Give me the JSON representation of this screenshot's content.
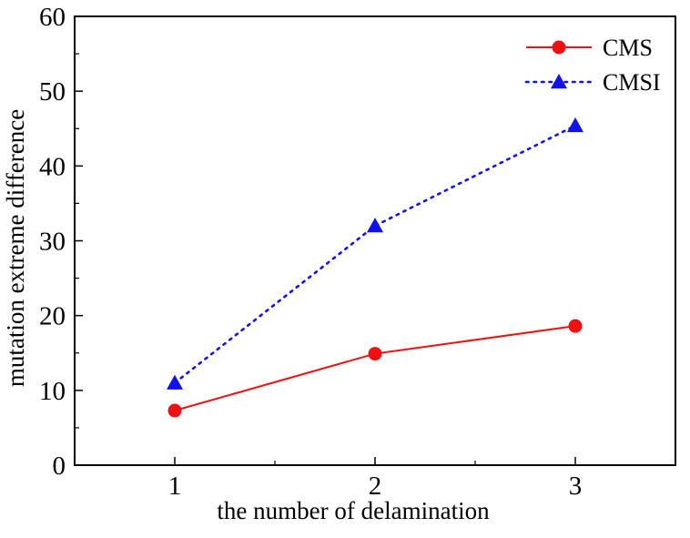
{
  "chart_data": {
    "type": "line",
    "title": "",
    "xlabel": "the number of delamination",
    "ylabel": "mutation extreme difference",
    "x": [
      1,
      2,
      3
    ],
    "xlim": [
      0.5,
      3.5
    ],
    "ylim": [
      0,
      60
    ],
    "xticks": [
      "1",
      "2",
      "3"
    ],
    "yticks": [
      "0",
      "10",
      "20",
      "30",
      "40",
      "50",
      "60"
    ],
    "grid": false,
    "legend_position": "top-right",
    "series": [
      {
        "name": "CMS",
        "values": [
          7.3,
          14.9,
          18.6
        ],
        "color": "#ee1111",
        "marker": "circle",
        "line": "solid"
      },
      {
        "name": "CMSI",
        "values": [
          11.0,
          32.0,
          45.4
        ],
        "color": "#1111ee",
        "marker": "triangle",
        "line": "dotted"
      }
    ]
  }
}
